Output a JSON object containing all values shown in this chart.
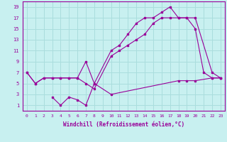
{
  "xlabel": "Windchill (Refroidissement éolien,°C)",
  "bg_color": "#c8f0f0",
  "line_color": "#990099",
  "grid_color": "#aadddd",
  "xlim": [
    -0.5,
    23.5
  ],
  "ylim": [
    0,
    20
  ],
  "xticks": [
    0,
    1,
    2,
    3,
    4,
    5,
    6,
    7,
    8,
    9,
    10,
    11,
    12,
    13,
    14,
    15,
    16,
    17,
    18,
    19,
    20,
    21,
    22,
    23
  ],
  "yticks": [
    1,
    3,
    5,
    7,
    9,
    11,
    13,
    15,
    17,
    19
  ],
  "line1_x": [
    0,
    1,
    2,
    3,
    4,
    5,
    6,
    7,
    8,
    10,
    11,
    12,
    13,
    14,
    15,
    16,
    17,
    18,
    19,
    20,
    21,
    22,
    23
  ],
  "line1_y": [
    7,
    5,
    6,
    6,
    6,
    6,
    6,
    9,
    5,
    11,
    12,
    14,
    16,
    17,
    17,
    18,
    19,
    17,
    17,
    15,
    7,
    6,
    6
  ],
  "line2_x": [
    0,
    1,
    2,
    3,
    4,
    5,
    6,
    7,
    8,
    10,
    11,
    12,
    13,
    14,
    15,
    16,
    17,
    18,
    19,
    20,
    22,
    23
  ],
  "line2_y": [
    7,
    5,
    6,
    6,
    6,
    6,
    6,
    5,
    4,
    10,
    11,
    12,
    13,
    14,
    16,
    17,
    17,
    17,
    17,
    17,
    7,
    6
  ],
  "line3_x": [
    3,
    4,
    5,
    6,
    7,
    8,
    10,
    18,
    19,
    20,
    22,
    23
  ],
  "line3_y": [
    2.5,
    1,
    2.5,
    2,
    1,
    5,
    3,
    5.5,
    5.5,
    5.5,
    6,
    6
  ]
}
